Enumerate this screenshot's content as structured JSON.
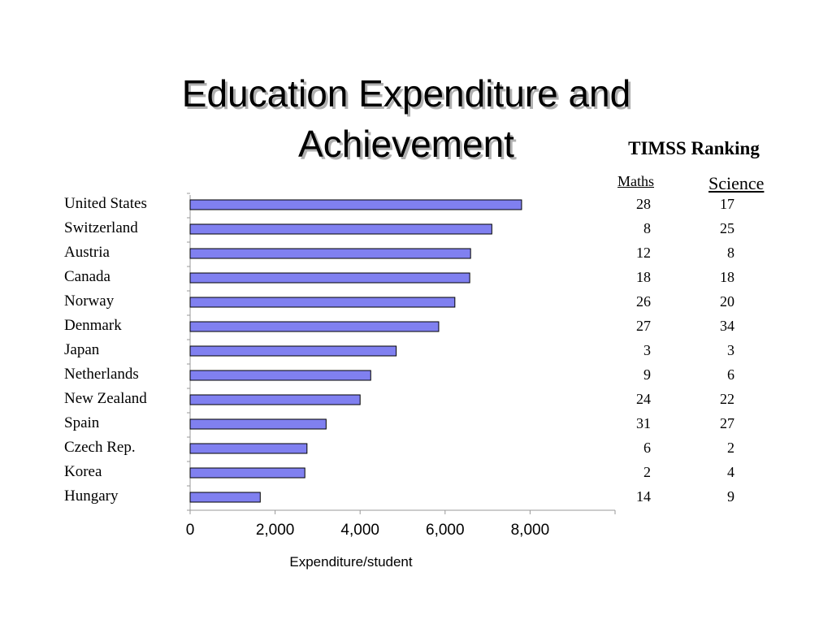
{
  "slide": {
    "title_line1": "Education Expenditure and",
    "title_line2": "Achievement"
  },
  "timss": {
    "heading": "TIMSS Ranking",
    "maths_label": "Maths",
    "science_label": "Science"
  },
  "chart_data": {
    "type": "bar",
    "orientation": "horizontal",
    "title": "",
    "xlabel": "Expenditure/student",
    "ylabel": "",
    "xlim": [
      0,
      10000
    ],
    "x_ticks": [
      0,
      2000,
      4000,
      6000,
      8000
    ],
    "x_tick_labels": [
      "0",
      "2,000",
      "4,000",
      "6,000",
      "8,000"
    ],
    "bar_color": "#8080f0",
    "grid": false,
    "categories": [
      "United States",
      "Switzerland",
      "Austria",
      "Canada",
      "Norway",
      "Denmark",
      "Japan",
      "Netherlands",
      "New Zealand",
      "Spain",
      "Czech Rep.",
      "Korea",
      "Hungary"
    ],
    "values": [
      7800,
      7100,
      6600,
      6580,
      6230,
      5850,
      4850,
      4250,
      4000,
      3200,
      2750,
      2700,
      1650
    ],
    "maths_rank": [
      "28",
      "8",
      "12",
      "18",
      "26",
      "27",
      "3",
      "9",
      "24",
      "31",
      "6",
      "2",
      "14"
    ],
    "science_rank": [
      "17",
      "25",
      "8",
      "18",
      "20",
      "34",
      "3",
      "6",
      "22",
      "27",
      "2",
      "4",
      "9"
    ]
  }
}
